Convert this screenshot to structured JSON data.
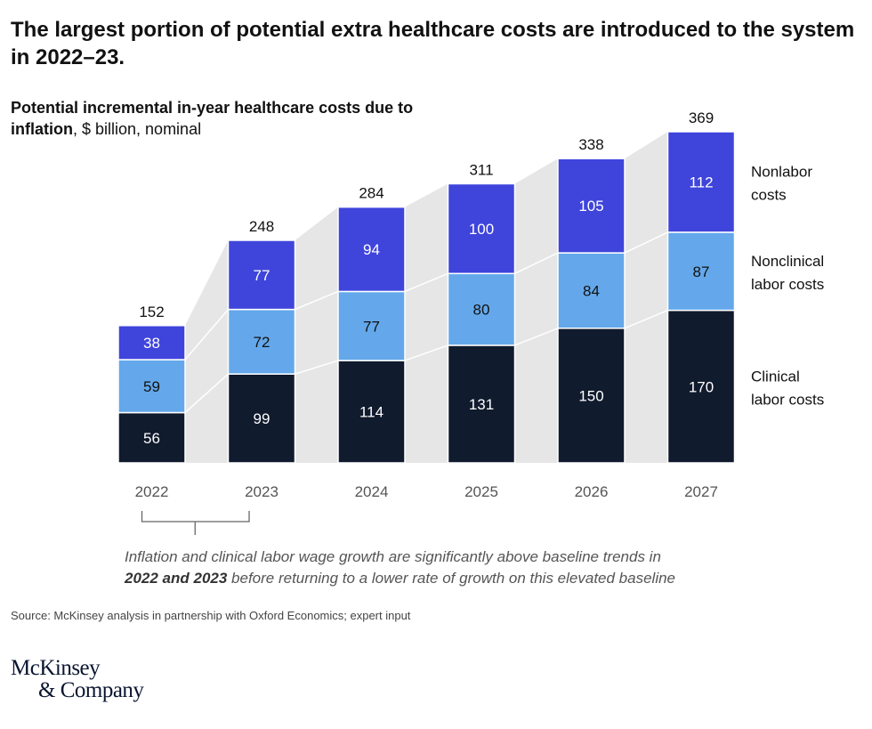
{
  "title": "The largest portion of potential extra healthcare costs are introduced to the system in 2022–23.",
  "subtitle": {
    "bold": "Potential incremental in-year healthcare costs due to inflation",
    "rest": ", $ billion, nominal"
  },
  "chart_data": {
    "type": "bar",
    "stacked": true,
    "categories": [
      "2022",
      "2023",
      "2024",
      "2025",
      "2026",
      "2027"
    ],
    "series": [
      {
        "name": "Clinical labor costs",
        "label_lines": [
          "Clinical",
          "labor costs"
        ],
        "color": "#111b2e",
        "text_color": "#ffffff",
        "values": [
          56,
          99,
          114,
          131,
          150,
          170
        ]
      },
      {
        "name": "Nonclinical labor costs",
        "label_lines": [
          "Nonclinical",
          "labor costs"
        ],
        "color": "#64a8eb",
        "text_color": "#111111",
        "values": [
          59,
          72,
          77,
          80,
          84,
          87
        ]
      },
      {
        "name": "Nonlabor costs",
        "label_lines": [
          "Nonlabor",
          "costs"
        ],
        "color": "#3f44db",
        "text_color": "#ffffff",
        "values": [
          38,
          77,
          94,
          100,
          105,
          112
        ]
      }
    ],
    "totals": [
      152,
      248,
      284,
      311,
      338,
      369
    ],
    "connector_color": "#e6e6e6",
    "legend": "right",
    "grid": false
  },
  "annotation": {
    "pre": "",
    "bold": "2022 and 2023",
    "line1": "Inflation and clinical labor wage growth are significantly above baseline trends in",
    "post": " before returning to a lower rate of growth on this elevated baseline"
  },
  "source": "Source: McKinsey analysis in partnership with Oxford Economics; expert input",
  "logo": {
    "line1": "McKinsey",
    "line2": "& Company"
  }
}
